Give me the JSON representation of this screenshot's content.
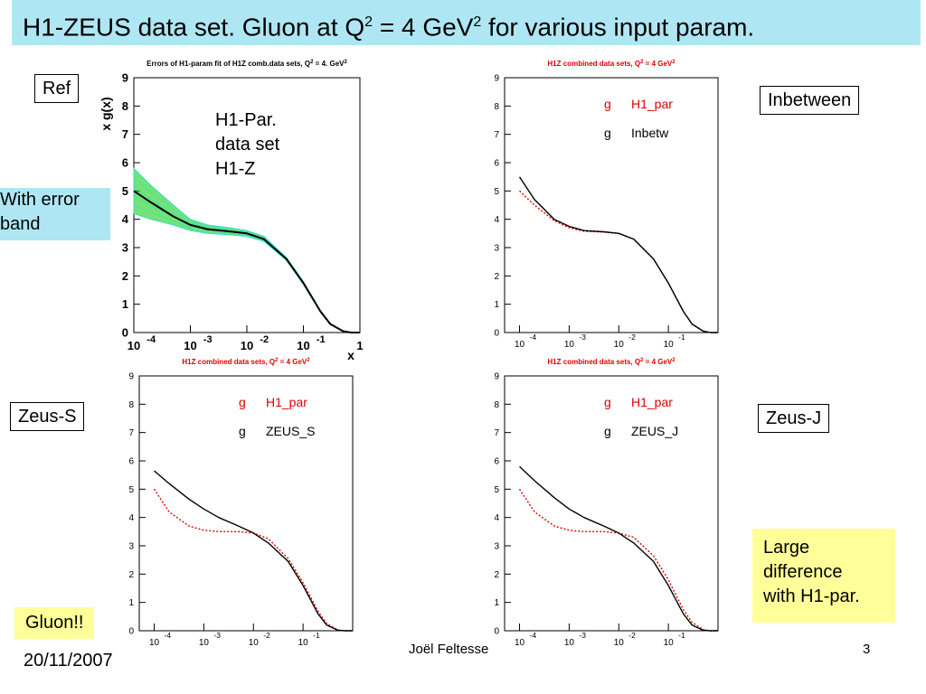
{
  "slide": {
    "title_main": "H1-ZEUS data set. Gluon at Q",
    "title_sup1": "2",
    "title_mid": " = 4 GeV",
    "title_sup2": "2",
    "title_end": " for various input param.",
    "labels": {
      "ref": "Ref",
      "inbetween": "Inbetween",
      "zeus_s": "Zeus-S",
      "zeus_j": "Zeus-J",
      "error_band": [
        "With error",
        "band"
      ],
      "h1par_note": [
        "H1-Par.",
        "data set",
        "H1-Z"
      ],
      "gluon": "Gluon!!",
      "large_diff": [
        "Large",
        "difference",
        "with H1-par."
      ]
    },
    "footer": {
      "date": "20/11/2007",
      "author": "Joël Feltesse",
      "page": "3"
    }
  },
  "colors": {
    "title_bg": "#aee7f3",
    "highlight_yellow": "#ffff99",
    "h1par_red": "#dd0000",
    "band_green": "#00cc00",
    "band_cyan": "#33ddcc"
  },
  "chart_data": [
    {
      "type": "line",
      "title": "Errors of H1-param fit of H1Z comb.data sets, Q",
      "title_sup": "2",
      "title_tail": " = 4. GeV",
      "title_tail_sup": "2",
      "xlabel": "x",
      "ylabel": "x g(x)",
      "xscale": "log",
      "xlim": [
        0.0001,
        1
      ],
      "ylim": [
        0,
        9
      ],
      "xtick_mant": [
        "10",
        "10",
        "10",
        "10",
        "1"
      ],
      "xtick_exp": [
        "-4",
        "-3",
        "-2",
        "-1",
        ""
      ],
      "yticks": [
        "0",
        "1",
        "2",
        "3",
        "4",
        "5",
        "6",
        "7",
        "8",
        "9"
      ],
      "legend": [],
      "series": [
        {
          "x": [
            0.0001,
            0.0002,
            0.0005,
            0.001,
            0.002,
            0.005,
            0.01,
            0.02,
            0.05,
            0.1,
            0.2,
            0.3,
            0.5,
            0.7,
            1.0
          ],
          "values": [
            5.0,
            4.6,
            4.1,
            3.8,
            3.65,
            3.57,
            3.5,
            3.3,
            2.6,
            1.75,
            0.75,
            0.3,
            0.05,
            0.0,
            0.0
          ]
        }
      ],
      "band": {
        "lower": [
          4.2,
          4.0,
          3.8,
          3.6,
          3.5,
          3.45,
          3.4,
          3.22,
          2.55,
          1.7,
          0.72,
          0.28,
          0.04,
          0.0,
          0.0
        ],
        "upper": [
          5.8,
          5.2,
          4.5,
          4.0,
          3.8,
          3.7,
          3.6,
          3.4,
          2.65,
          1.8,
          0.78,
          0.32,
          0.06,
          0.0,
          0.0
        ]
      }
    },
    {
      "type": "line",
      "title": "H1Z combined data sets, Q",
      "title_sup": "2",
      "title_tail": " = 4 GeV",
      "title_tail_sup": "2",
      "xscale": "log",
      "xlim": [
        5e-05,
        1
      ],
      "ylim": [
        0,
        9
      ],
      "xtick_mant": [
        "10",
        "10",
        "10",
        "10"
      ],
      "xtick_exp": [
        "-4",
        "-3",
        "-2",
        "-1"
      ],
      "yticks": [
        "0",
        "1",
        "2",
        "3",
        "4",
        "5",
        "6",
        "7",
        "8",
        "9"
      ],
      "legend": [
        {
          "sym": "g",
          "name": "H1_par"
        },
        {
          "sym": "g",
          "name": "Inbetw"
        }
      ],
      "series": [
        {
          "name": "H1_par",
          "color": "#dd0000",
          "dashed": true,
          "x": [
            0.0001,
            0.0002,
            0.0005,
            0.001,
            0.002,
            0.005,
            0.01,
            0.02,
            0.05,
            0.1,
            0.2,
            0.3,
            0.5,
            0.7,
            1.0
          ],
          "values": [
            5.0,
            4.5,
            3.95,
            3.7,
            3.58,
            3.55,
            3.5,
            3.3,
            2.6,
            1.75,
            0.75,
            0.3,
            0.05,
            0.0,
            0.0
          ]
        },
        {
          "name": "Inbetw",
          "color": "#000000",
          "dashed": false,
          "x": [
            0.0001,
            0.0002,
            0.0005,
            0.001,
            0.002,
            0.005,
            0.01,
            0.02,
            0.05,
            0.1,
            0.2,
            0.3,
            0.5,
            0.7,
            1.0
          ],
          "values": [
            5.5,
            4.7,
            4.0,
            3.75,
            3.6,
            3.56,
            3.5,
            3.3,
            2.6,
            1.75,
            0.75,
            0.3,
            0.05,
            0.0,
            0.0
          ]
        }
      ]
    },
    {
      "type": "line",
      "title": "H1Z combined data sets, Q",
      "title_sup": "2",
      "title_tail": " = 4 GeV",
      "title_tail_sup": "2",
      "xscale": "log",
      "xlim": [
        5e-05,
        1
      ],
      "ylim": [
        0,
        9
      ],
      "xtick_mant": [
        "10",
        "10",
        "10",
        "10"
      ],
      "xtick_exp": [
        "-4",
        "-3",
        "-2",
        "-1"
      ],
      "yticks": [
        "0",
        "1",
        "2",
        "3",
        "4",
        "5",
        "6",
        "7",
        "8",
        "9"
      ],
      "legend": [
        {
          "sym": "g",
          "name": "H1_par"
        },
        {
          "sym": "g",
          "name": "ZEUS_S"
        }
      ],
      "series": [
        {
          "name": "H1_par",
          "color": "#dd0000",
          "dashed": true,
          "x": [
            0.0001,
            0.0002,
            0.0005,
            0.001,
            0.002,
            0.005,
            0.01,
            0.02,
            0.05,
            0.1,
            0.2,
            0.3,
            0.5,
            0.7,
            1.0
          ],
          "values": [
            5.0,
            4.2,
            3.7,
            3.55,
            3.5,
            3.5,
            3.45,
            3.25,
            2.55,
            1.7,
            0.7,
            0.25,
            0.03,
            0.0,
            0.0
          ]
        },
        {
          "name": "ZEUS_S",
          "color": "#000000",
          "dashed": false,
          "x": [
            0.0001,
            0.0002,
            0.0005,
            0.001,
            0.002,
            0.005,
            0.01,
            0.02,
            0.05,
            0.1,
            0.2,
            0.3,
            0.5,
            0.7,
            1.0
          ],
          "values": [
            5.65,
            5.2,
            4.65,
            4.3,
            4.0,
            3.7,
            3.45,
            3.1,
            2.45,
            1.6,
            0.6,
            0.2,
            0.02,
            0.0,
            0.0
          ]
        }
      ]
    },
    {
      "type": "line",
      "title": "H1Z combined data sets, Q",
      "title_sup": "2",
      "title_tail": " = 4 GeV",
      "title_tail_sup": "2",
      "xscale": "log",
      "xlim": [
        5e-05,
        1
      ],
      "ylim": [
        0,
        9
      ],
      "xtick_mant": [
        "10",
        "10",
        "10",
        "10"
      ],
      "xtick_exp": [
        "-4",
        "-3",
        "-2",
        "-1"
      ],
      "yticks": [
        "0",
        "1",
        "2",
        "3",
        "4",
        "5",
        "6",
        "7",
        "8",
        "9"
      ],
      "legend": [
        {
          "sym": "g",
          "name": "H1_par"
        },
        {
          "sym": "g",
          "name": "ZEUS_J"
        }
      ],
      "series": [
        {
          "name": "H1_par",
          "color": "#dd0000",
          "dashed": true,
          "x": [
            0.0001,
            0.0002,
            0.0005,
            0.001,
            0.002,
            0.005,
            0.01,
            0.02,
            0.05,
            0.1,
            0.2,
            0.3,
            0.5,
            0.7,
            1.0
          ],
          "values": [
            5.0,
            4.2,
            3.7,
            3.55,
            3.5,
            3.5,
            3.45,
            3.3,
            2.65,
            1.8,
            0.75,
            0.3,
            0.04,
            0.0,
            0.0
          ]
        },
        {
          "name": "ZEUS_J",
          "color": "#000000",
          "dashed": false,
          "x": [
            0.0001,
            0.0002,
            0.0005,
            0.001,
            0.002,
            0.005,
            0.01,
            0.02,
            0.05,
            0.1,
            0.2,
            0.3,
            0.5,
            0.7,
            1.0
          ],
          "values": [
            5.8,
            5.3,
            4.7,
            4.3,
            4.0,
            3.7,
            3.45,
            3.1,
            2.45,
            1.6,
            0.6,
            0.2,
            0.02,
            0.0,
            0.0
          ]
        }
      ]
    }
  ]
}
